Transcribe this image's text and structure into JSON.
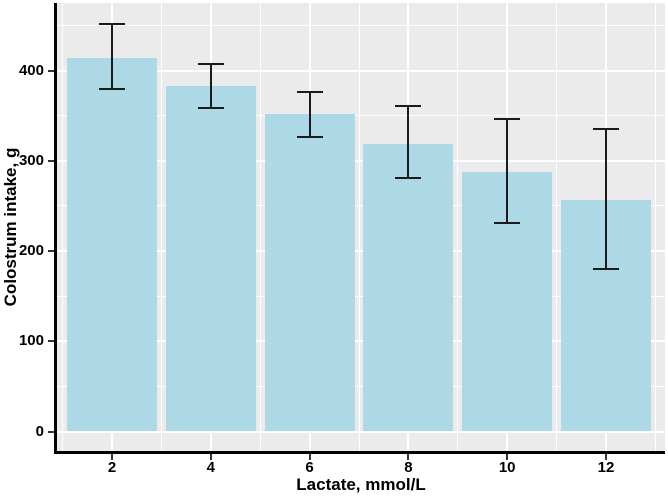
{
  "chart_data": {
    "type": "bar",
    "title": "",
    "xlabel": "Lactate, mmol/L",
    "ylabel": "Colostrum intake, g",
    "categories": [
      2,
      4,
      6,
      8,
      10,
      12
    ],
    "values": [
      414,
      383,
      352,
      319,
      288,
      257
    ],
    "error_low": [
      379,
      359,
      326,
      281,
      231,
      180
    ],
    "error_high": [
      452,
      407,
      376,
      361,
      346,
      335
    ],
    "series": [
      {
        "name": "Colostrum intake",
        "values": [
          414,
          383,
          352,
          319,
          288,
          257
        ]
      }
    ],
    "ylim": [
      0,
      474
    ],
    "yticks": [
      0,
      100,
      200,
      300,
      400
    ],
    "yticks_minor": [
      50,
      150,
      250,
      350,
      450
    ],
    "xticks": [
      2,
      4,
      6,
      8,
      10,
      12
    ],
    "xticks_minor": [
      1,
      3,
      5,
      7,
      9,
      11,
      13
    ],
    "grid": "major-and-minor-white-on-gray",
    "legend": "none",
    "error_bars": "vertical-with-caps",
    "colors": {
      "bar_fill": "#ADD8E6",
      "panel_bg": "#EBEBEB",
      "grid_major": "#FFFFFF",
      "grid_minor": "#FFFFFF",
      "error_bar": "#1B1B1B",
      "axis_line": "#000000",
      "tick_mark": "#333333",
      "text": "#000000"
    }
  }
}
